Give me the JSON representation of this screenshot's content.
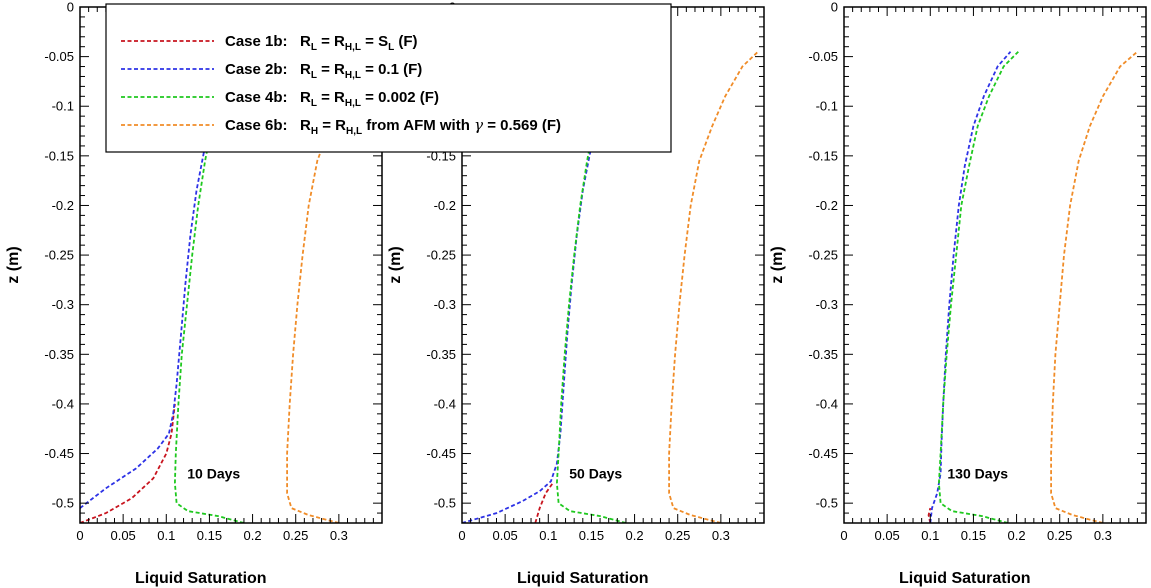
{
  "legend": {
    "entries": [
      {
        "case": "Case 1b:",
        "label_parts": [
          [
            "R",
            ""
          ],
          [
            "L",
            "sub"
          ],
          [
            " = R",
            ""
          ],
          [
            "H,L",
            "sub"
          ],
          [
            " = S",
            ""
          ],
          [
            "L",
            "sub"
          ],
          [
            "  (F)",
            ""
          ]
        ],
        "color": "#c8141e"
      },
      {
        "case": "Case 2b:",
        "label_parts": [
          [
            "R",
            ""
          ],
          [
            "L",
            "sub"
          ],
          [
            " = R",
            ""
          ],
          [
            "H,L",
            "sub"
          ],
          [
            " = 0.1  (F)",
            ""
          ]
        ],
        "color": "#2d32e6"
      },
      {
        "case": "Case 4b:",
        "label_parts": [
          [
            "R",
            ""
          ],
          [
            "L",
            "sub"
          ],
          [
            " = R",
            ""
          ],
          [
            "H,L",
            "sub"
          ],
          [
            " = 0.002  (F)",
            ""
          ]
        ],
        "color": "#1ec81e"
      },
      {
        "case": "Case 6b:",
        "label_parts": [
          [
            "R",
            ""
          ],
          [
            "H",
            "sub"
          ],
          [
            " = R",
            ""
          ],
          [
            "H,L",
            "sub"
          ],
          [
            " from AFM with ",
            ""
          ],
          [
            "γ",
            "sym"
          ],
          [
            " = 0.569  (F)",
            ""
          ]
        ],
        "color": "#f08c28"
      }
    ]
  },
  "chart_data": [
    {
      "type": "line",
      "annotation": "10 Days",
      "xlabel": "Liquid Saturation",
      "ylabel": "z  (m)",
      "xlim": [
        0,
        0.35
      ],
      "ylim": [
        -0.52,
        0
      ],
      "xticks": [
        "0",
        "0.05",
        "0.1",
        "0.15",
        "0.2",
        "0.25",
        "0.3"
      ],
      "yticks": [
        "0",
        "-0.05",
        "-0.1",
        "-0.15",
        "-0.2",
        "-0.25",
        "-0.3",
        "-0.35",
        "-0.4",
        "-0.45",
        "-0.5"
      ],
      "series": [
        {
          "name": "Case 1b",
          "color": "#c8141e",
          "points": [
            [
              0.0,
              -0.52
            ],
            [
              0.03,
              -0.51
            ],
            [
              0.06,
              -0.495
            ],
            [
              0.085,
              -0.475
            ],
            [
              0.1,
              -0.45
            ],
            [
              0.106,
              -0.43
            ],
            [
              0.11,
              -0.4
            ]
          ]
        },
        {
          "name": "Case 2b",
          "color": "#2d32e6",
          "points": [
            [
              0.0,
              -0.505
            ],
            [
              0.03,
              -0.485
            ],
            [
              0.065,
              -0.465
            ],
            [
              0.09,
              -0.445
            ],
            [
              0.103,
              -0.43
            ],
            [
              0.108,
              -0.41
            ],
            [
              0.112,
              -0.38
            ],
            [
              0.117,
              -0.33
            ],
            [
              0.122,
              -0.28
            ],
            [
              0.128,
              -0.23
            ],
            [
              0.135,
              -0.185
            ],
            [
              0.145,
              -0.14
            ],
            [
              0.158,
              -0.09
            ],
            [
              0.17,
              -0.045
            ]
          ]
        },
        {
          "name": "Case 4b",
          "color": "#1ec81e",
          "points": [
            [
              0.19,
              -0.52
            ],
            [
              0.16,
              -0.513
            ],
            [
              0.125,
              -0.508
            ],
            [
              0.112,
              -0.5
            ],
            [
              0.11,
              -0.48
            ],
            [
              0.111,
              -0.45
            ],
            [
              0.114,
              -0.4
            ],
            [
              0.118,
              -0.35
            ],
            [
              0.124,
              -0.3
            ],
            [
              0.13,
              -0.25
            ],
            [
              0.137,
              -0.2
            ],
            [
              0.145,
              -0.155
            ],
            [
              0.155,
              -0.11
            ],
            [
              0.165,
              -0.075
            ],
            [
              0.178,
              -0.045
            ]
          ]
        },
        {
          "name": "Case 6b",
          "color": "#f08c28",
          "points": [
            [
              0.3,
              -0.52
            ],
            [
              0.265,
              -0.512
            ],
            [
              0.245,
              -0.505
            ],
            [
              0.24,
              -0.49
            ],
            [
              0.24,
              -0.45
            ],
            [
              0.243,
              -0.4
            ],
            [
              0.247,
              -0.35
            ],
            [
              0.252,
              -0.3
            ],
            [
              0.258,
              -0.25
            ],
            [
              0.265,
              -0.2
            ],
            [
              0.275,
              -0.155
            ],
            [
              0.29,
              -0.12
            ],
            [
              0.305,
              -0.09
            ],
            [
              0.32,
              -0.065
            ],
            [
              0.335,
              -0.045
            ]
          ]
        }
      ]
    },
    {
      "type": "line",
      "annotation": "50 Days",
      "xlabel": "Liquid Saturation",
      "ylabel": "z  (m)",
      "xlim": [
        0,
        0.35
      ],
      "ylim": [
        -0.52,
        0
      ],
      "xticks": [
        "0",
        "0.05",
        "0.1",
        "0.15",
        "0.2",
        "0.25",
        "0.3"
      ],
      "yticks": [
        "0",
        "-0.05",
        "-0.1",
        "-0.15",
        "-0.2",
        "-0.25",
        "-0.3",
        "-0.35",
        "-0.4",
        "-0.45",
        "-0.5"
      ],
      "series": [
        {
          "name": "Case 1b",
          "color": "#c8141e",
          "points": [
            [
              0.085,
              -0.52
            ],
            [
              0.09,
              -0.505
            ],
            [
              0.097,
              -0.49
            ],
            [
              0.105,
              -0.48
            ]
          ]
        },
        {
          "name": "Case 2b",
          "color": "#2d32e6",
          "points": [
            [
              0.0,
              -0.52
            ],
            [
              0.04,
              -0.51
            ],
            [
              0.07,
              -0.498
            ],
            [
              0.09,
              -0.488
            ],
            [
              0.103,
              -0.478
            ],
            [
              0.11,
              -0.46
            ],
            [
              0.114,
              -0.43
            ],
            [
              0.118,
              -0.38
            ],
            [
              0.122,
              -0.33
            ],
            [
              0.127,
              -0.28
            ],
            [
              0.133,
              -0.23
            ],
            [
              0.14,
              -0.185
            ],
            [
              0.15,
              -0.14
            ],
            [
              0.162,
              -0.09
            ],
            [
              0.175,
              -0.045
            ]
          ]
        },
        {
          "name": "Case 4b",
          "color": "#1ec81e",
          "points": [
            [
              0.19,
              -0.52
            ],
            [
              0.16,
              -0.513
            ],
            [
              0.125,
              -0.508
            ],
            [
              0.112,
              -0.5
            ],
            [
              0.11,
              -0.48
            ],
            [
              0.112,
              -0.45
            ],
            [
              0.115,
              -0.4
            ],
            [
              0.119,
              -0.35
            ],
            [
              0.124,
              -0.3
            ],
            [
              0.13,
              -0.25
            ],
            [
              0.137,
              -0.2
            ],
            [
              0.145,
              -0.155
            ],
            [
              0.155,
              -0.11
            ],
            [
              0.165,
              -0.075
            ],
            [
              0.178,
              -0.045
            ]
          ]
        },
        {
          "name": "Case 6b",
          "color": "#f08c28",
          "points": [
            [
              0.3,
              -0.52
            ],
            [
              0.265,
              -0.512
            ],
            [
              0.245,
              -0.505
            ],
            [
              0.24,
              -0.49
            ],
            [
              0.24,
              -0.45
            ],
            [
              0.243,
              -0.4
            ],
            [
              0.247,
              -0.35
            ],
            [
              0.252,
              -0.3
            ],
            [
              0.258,
              -0.25
            ],
            [
              0.265,
              -0.2
            ],
            [
              0.275,
              -0.155
            ],
            [
              0.29,
              -0.12
            ],
            [
              0.305,
              -0.09
            ],
            [
              0.325,
              -0.06
            ],
            [
              0.343,
              -0.045
            ]
          ]
        }
      ]
    },
    {
      "type": "line",
      "annotation": "130 Days",
      "xlabel": "Liquid Saturation",
      "ylabel": "z  (m)",
      "xlim": [
        0,
        0.35
      ],
      "ylim": [
        -0.52,
        0
      ],
      "xticks": [
        "0",
        "0.05",
        "0.1",
        "0.15",
        "0.2",
        "0.25",
        "0.3"
      ],
      "yticks": [
        "0",
        "-0.05",
        "-0.1",
        "-0.15",
        "-0.2",
        "-0.25",
        "-0.3",
        "-0.35",
        "-0.4",
        "-0.45",
        "-0.5"
      ],
      "series": [
        {
          "name": "Case 1b",
          "color": "#c8141e",
          "points": [
            [
              0.1,
              -0.52
            ],
            [
              0.098,
              -0.512
            ],
            [
              0.1,
              -0.505
            ]
          ]
        },
        {
          "name": "Case 2b",
          "color": "#2d32e6",
          "points": [
            [
              0.1,
              -0.52
            ],
            [
              0.102,
              -0.505
            ],
            [
              0.108,
              -0.49
            ],
            [
              0.112,
              -0.47
            ],
            [
              0.113,
              -0.44
            ],
            [
              0.115,
              -0.4
            ],
            [
              0.118,
              -0.35
            ],
            [
              0.122,
              -0.3
            ],
            [
              0.127,
              -0.25
            ],
            [
              0.133,
              -0.2
            ],
            [
              0.14,
              -0.16
            ],
            [
              0.15,
              -0.12
            ],
            [
              0.162,
              -0.09
            ],
            [
              0.178,
              -0.06
            ],
            [
              0.193,
              -0.045
            ]
          ]
        },
        {
          "name": "Case 4b",
          "color": "#1ec81e",
          "points": [
            [
              0.19,
              -0.52
            ],
            [
              0.16,
              -0.513
            ],
            [
              0.125,
              -0.508
            ],
            [
              0.112,
              -0.5
            ],
            [
              0.11,
              -0.48
            ],
            [
              0.112,
              -0.45
            ],
            [
              0.115,
              -0.4
            ],
            [
              0.119,
              -0.35
            ],
            [
              0.124,
              -0.3
            ],
            [
              0.13,
              -0.25
            ],
            [
              0.136,
              -0.2
            ],
            [
              0.145,
              -0.16
            ],
            [
              0.155,
              -0.12
            ],
            [
              0.168,
              -0.09
            ],
            [
              0.185,
              -0.06
            ],
            [
              0.202,
              -0.045
            ]
          ]
        },
        {
          "name": "Case 6b",
          "color": "#f08c28",
          "points": [
            [
              0.3,
              -0.52
            ],
            [
              0.265,
              -0.512
            ],
            [
              0.245,
              -0.505
            ],
            [
              0.24,
              -0.49
            ],
            [
              0.24,
              -0.45
            ],
            [
              0.242,
              -0.4
            ],
            [
              0.245,
              -0.35
            ],
            [
              0.25,
              -0.3
            ],
            [
              0.255,
              -0.25
            ],
            [
              0.262,
              -0.2
            ],
            [
              0.272,
              -0.155
            ],
            [
              0.285,
              -0.12
            ],
            [
              0.3,
              -0.09
            ],
            [
              0.32,
              -0.06
            ],
            [
              0.34,
              -0.045
            ]
          ]
        }
      ]
    }
  ]
}
